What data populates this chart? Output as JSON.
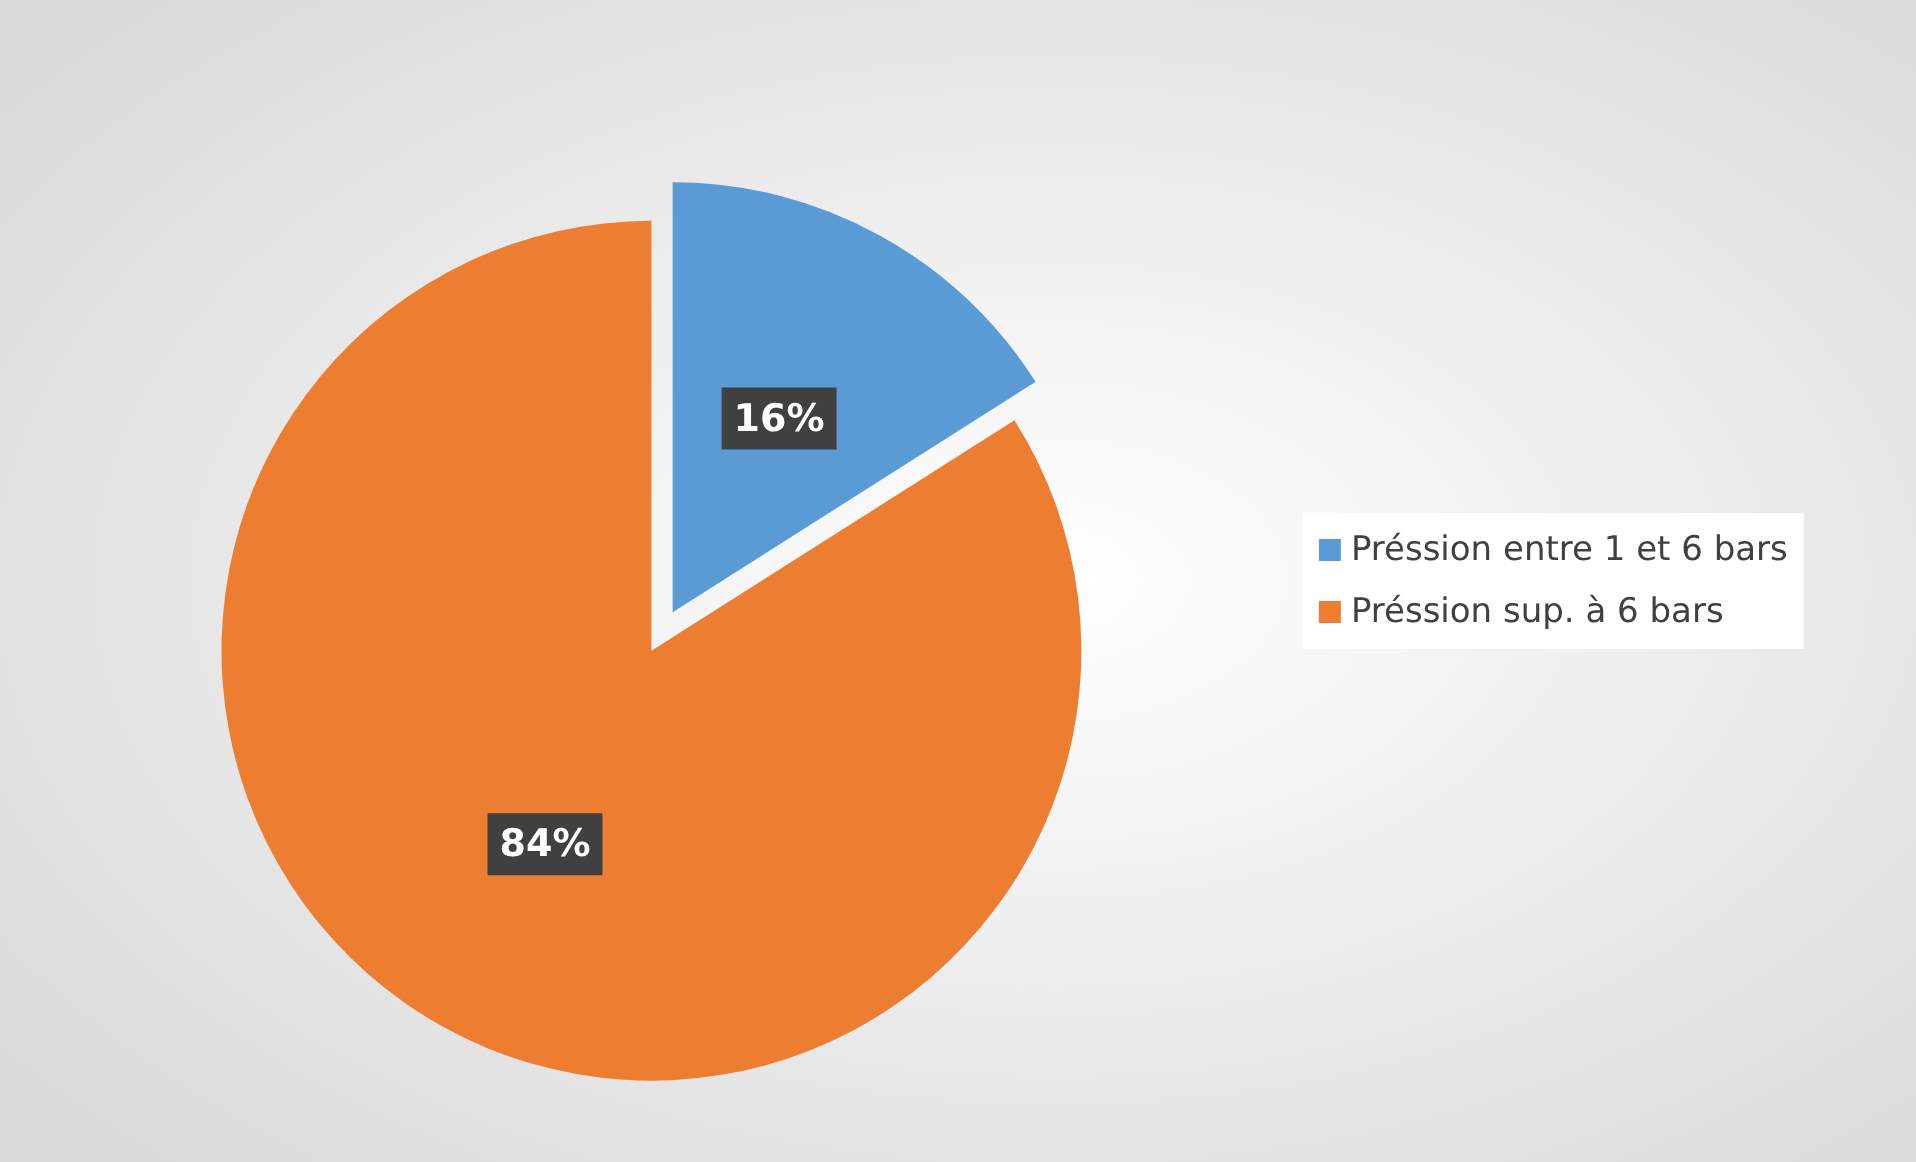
{
  "chart_data": {
    "type": "pie",
    "categories": [
      "Préssion entre 1 et 6 bars",
      "Préssion sup. à 6 bars"
    ],
    "values": [
      16,
      84
    ],
    "colors": [
      "#5b9bd5",
      "#ed7d31"
    ],
    "value_labels": [
      "16%",
      "84%"
    ],
    "legend": "right"
  }
}
